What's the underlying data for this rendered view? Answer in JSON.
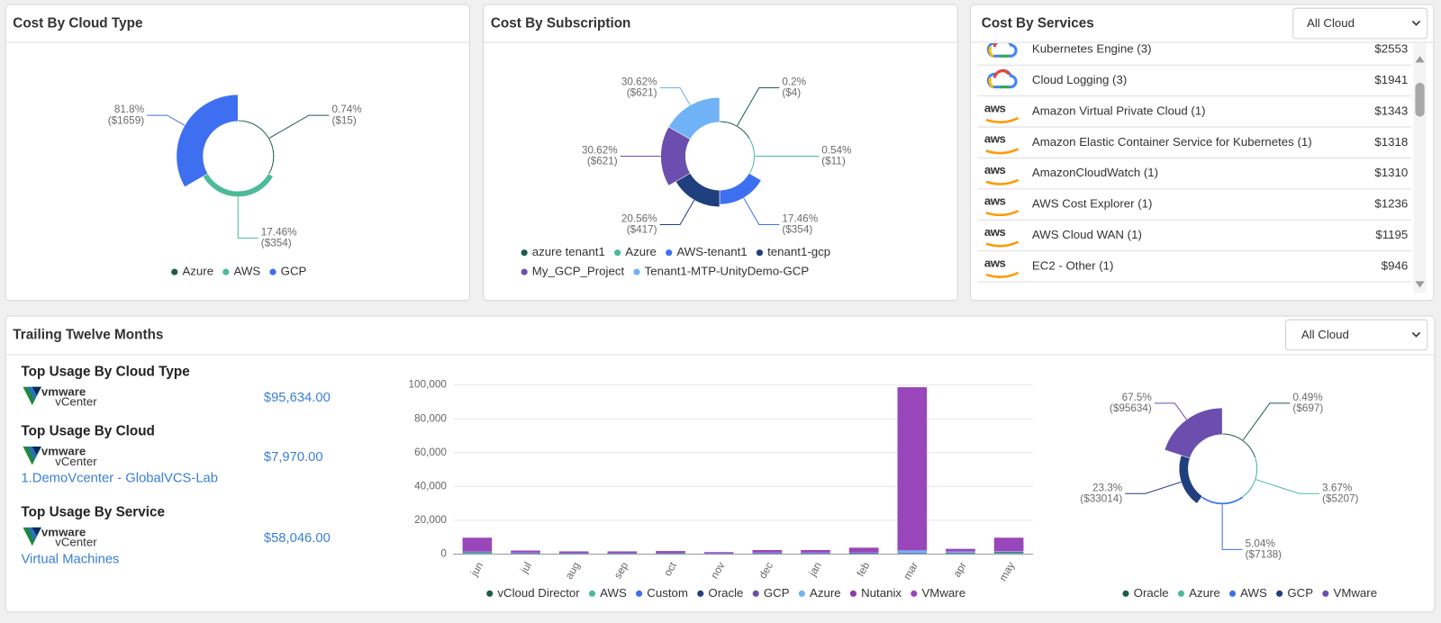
{
  "chart_data": [
    {
      "type": "rose",
      "title": "Cost By Cloud Type",
      "categories": [
        "Azure",
        "AWS",
        "GCP"
      ],
      "values": [
        15,
        354,
        1659
      ],
      "value_labels": [
        "($15)",
        "($354)",
        "($1659)"
      ],
      "percent_labels": [
        "0.74%",
        "17.46%",
        "81.8%"
      ],
      "colors": [
        "#1d5c4c",
        "#4dbb94",
        "#3d6ff0"
      ]
    },
    {
      "type": "rose",
      "title": "Cost By Subscription",
      "categories": [
        "azure tenant1",
        "Azure",
        "AWS-tenant1",
        "tenant1-gcp",
        "My_GCP_Project",
        "Tenant1-MTP-UnityDemo-GCP"
      ],
      "values": [
        4,
        11,
        354,
        417,
        621,
        621
      ],
      "value_labels": [
        "($4)",
        "($11)",
        "($354)",
        "($417)",
        "($621)",
        "($621)"
      ],
      "percent_labels": [
        "0.2%",
        "0.54%",
        "17.46%",
        "20.56%",
        "30.62%",
        "30.62%"
      ],
      "colors": [
        "#1d5c4c",
        "#4dbb94",
        "#3d6ff0",
        "#203f7e",
        "#6b4eae",
        "#6fb2f6"
      ]
    },
    {
      "type": "rose",
      "categories": [
        "Oracle",
        "Azure",
        "AWS",
        "GCP",
        "VMware"
      ],
      "values": [
        697,
        5207,
        7138,
        33014,
        95634
      ],
      "value_labels": [
        "($697)",
        "($5207)",
        "($7138)",
        "($33014)",
        "($95634)"
      ],
      "percent_labels": [
        "0.49%",
        "3.67%",
        "5.04%",
        "23.3%",
        "67.5%"
      ],
      "colors": [
        "#1d5c4c",
        "#4dbb94",
        "#3d6ff0",
        "#203f7e",
        "#6b4eae"
      ]
    },
    {
      "type": "bar",
      "stacked": true,
      "categories": [
        "jun",
        "jul",
        "aug",
        "sep",
        "oct",
        "nov",
        "dec",
        "jan",
        "feb",
        "mar",
        "apr",
        "may"
      ],
      "series": [
        {
          "name": "vCloud Director",
          "color": "#1d5c4c",
          "values": [
            0,
            0,
            0,
            0,
            0,
            0,
            0,
            0,
            0,
            0,
            0,
            0
          ]
        },
        {
          "name": "AWS",
          "color": "#4dbb94",
          "values": [
            700,
            200,
            200,
            200,
            200,
            100,
            200,
            200,
            200,
            300,
            400,
            800
          ]
        },
        {
          "name": "Custom",
          "color": "#3d6ff0",
          "values": [
            0,
            0,
            0,
            0,
            0,
            0,
            0,
            0,
            0,
            0,
            0,
            0
          ]
        },
        {
          "name": "Oracle",
          "color": "#203f7e",
          "values": [
            0,
            0,
            0,
            0,
            0,
            0,
            0,
            0,
            0,
            0,
            0,
            0
          ]
        },
        {
          "name": "GCP",
          "color": "#6b4eae",
          "values": [
            500,
            400,
            300,
            300,
            300,
            200,
            400,
            400,
            500,
            400,
            500,
            600
          ]
        },
        {
          "name": "Azure",
          "color": "#6fb2f6",
          "values": [
            300,
            300,
            200,
            200,
            200,
            200,
            300,
            300,
            300,
            1500,
            700,
            300
          ]
        },
        {
          "name": "Nutanix",
          "color": "#8e3ba7",
          "values": [
            0,
            0,
            0,
            0,
            0,
            0,
            0,
            0,
            0,
            0,
            0,
            0
          ]
        },
        {
          "name": "VMware",
          "color": "#9a46bb",
          "values": [
            8200,
            1200,
            900,
            900,
            1100,
            700,
            1500,
            1500,
            2800,
            96500,
            1500,
            8000
          ]
        }
      ],
      "ylim": [
        0,
        100000
      ],
      "yticks": [
        0,
        {
          "value": 20000,
          "label": "20,000"
        },
        {
          "value": 40000,
          "label": "40,000"
        },
        {
          "value": 60000,
          "label": "60,000"
        },
        {
          "value": 80000,
          "label": "80,000"
        },
        {
          "value": 100000,
          "label": "100,000"
        }
      ],
      "grid": true
    }
  ],
  "services": {
    "title": "Cost By Services",
    "dropdown": "All Cloud",
    "rows": [
      {
        "name": "Kubernetes Engine (3)",
        "cost": "$2553"
      },
      {
        "name": "Cloud Logging (3)",
        "cost": "$1941"
      },
      {
        "logo": "aws",
        "name": "Amazon Virtual Private Cloud (1)",
        "cost": "$1343"
      },
      {
        "logo": "aws",
        "name": "Amazon Elastic Container Service for Kubernetes (1)",
        "cost": "$1318"
      },
      {
        "logo": "aws",
        "name": "AmazonCloudWatch (1)",
        "cost": "$1310"
      },
      {
        "logo": "aws",
        "name": "AWS Cost Explorer (1)",
        "cost": "$1236"
      },
      {
        "logo": "aws",
        "name": "AWS Cloud WAN (1)",
        "cost": "$1195"
      },
      {
        "logo": "aws",
        "name": "EC2 - Other (1)",
        "cost": "$946"
      }
    ]
  },
  "trailing": {
    "title": "Trailing Twelve Months",
    "dropdown": "All Cloud",
    "top_usage": [
      {
        "heading": "Top Usage By Cloud Type",
        "logo": "vmware",
        "logo_sub": "vCenter",
        "amount": "$95,634.00"
      },
      {
        "heading": "Top Usage By Cloud",
        "logo": "vmware",
        "logo_sub": "vCenter",
        "amount": "$7,970.00",
        "link": "1.DemoVcenter - GlobalVCS-Lab"
      },
      {
        "heading": "Top Usage By Service",
        "logo": "vmware",
        "logo_sub": "vCenter",
        "amount": "$58,046.00",
        "link": "Virtual Machines"
      }
    ]
  }
}
